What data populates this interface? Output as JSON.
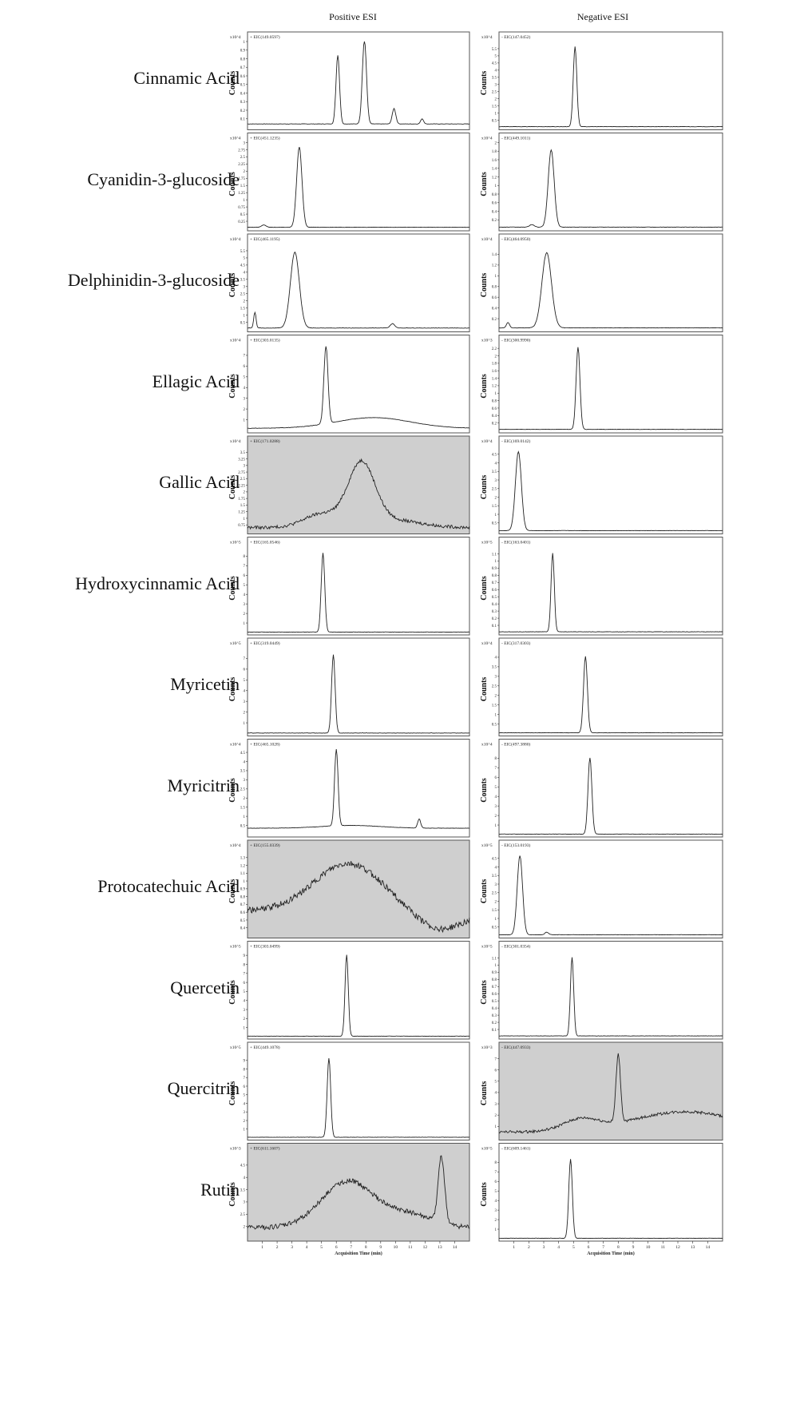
{
  "column_headers": {
    "positive": "Positive ESI",
    "negative": "Negative ESI"
  },
  "axis": {
    "ylabel": "Counts",
    "xlabel": "Acquisition Time (min)",
    "x_ticks": [
      "1",
      "2",
      "3",
      "4",
      "5",
      "6",
      "7",
      "8",
      "9",
      "10",
      "11",
      "12",
      "13",
      "14"
    ]
  },
  "compounds": [
    "Cinnamic Acid",
    "Cyanidin-3-glucoside",
    "Delphinidin-3-glucoside",
    "Ellagic Acid",
    "Gallic Acid",
    "Hydroxycinnamic Acid",
    "Myricetin",
    "Myricitrin",
    "Protocatechuic Acid",
    "Quercetin",
    "Quercitrin",
    "Rutin"
  ],
  "colors": {
    "trace": "#222222",
    "shaded_bg": "#cfcfcf",
    "frame": "#555555"
  },
  "chart_data": [
    {
      "type": "line",
      "panel": "Cinnamic Acid - Positive ESI",
      "label": "+ EIC(149.0597)",
      "scale": "x10^4",
      "shaded": false,
      "xlim": [
        0,
        15
      ],
      "ylim": [
        0,
        1
      ],
      "ticks": [
        "0.1",
        "0.2",
        "0.3",
        "0.4",
        "0.5",
        "0.6",
        "0.7",
        "0.8",
        "0.9",
        "1"
      ],
      "baseline": 0.04,
      "peaks": [
        [
          6.1,
          0.8,
          0.12
        ],
        [
          7.9,
          0.98,
          0.14
        ],
        [
          9.9,
          0.18,
          0.12
        ],
        [
          11.8,
          0.06,
          0.1
        ]
      ]
    },
    {
      "type": "line",
      "panel": "Cinnamic Acid - Negative ESI",
      "label": "- EIC(147.0452)",
      "scale": "x10^4",
      "shaded": false,
      "xlim": [
        0,
        15
      ],
      "ylim": [
        0,
        6
      ],
      "ticks": [
        "0.5",
        "1",
        "1.5",
        "2",
        "2.5",
        "3",
        "3.5",
        "4",
        "4.5",
        "5",
        "5.5"
      ],
      "baseline": 0.05,
      "peaks": [
        [
          5.1,
          5.6,
          0.12
        ]
      ]
    },
    {
      "type": "line",
      "panel": "Cyanidin-3-glucoside - Positive ESI",
      "label": "+ EIC(451.1235)",
      "scale": "x10^4",
      "shaded": false,
      "xlim": [
        0,
        15
      ],
      "ylim": [
        0,
        3
      ],
      "ticks": [
        "0.25",
        "0.5",
        "0.75",
        "1",
        "1.25",
        "1.5",
        "1.75",
        "2",
        "2.25",
        "2.5",
        "2.75",
        "3"
      ],
      "baseline": 0.04,
      "peaks": [
        [
          3.5,
          2.8,
          0.18
        ],
        [
          1.1,
          0.08,
          0.15
        ]
      ]
    },
    {
      "type": "line",
      "panel": "Cyanidin-3-glucoside - Negative ESI",
      "label": "- EIC(449.1011)",
      "scale": "x10^4",
      "shaded": false,
      "xlim": [
        0,
        15
      ],
      "ylim": [
        0,
        2
      ],
      "ticks": [
        "0.2",
        "0.4",
        "0.6",
        "0.8",
        "1",
        "1.2",
        "1.4",
        "1.6",
        "1.8",
        "2"
      ],
      "baseline": 0.03,
      "peaks": [
        [
          3.5,
          1.8,
          0.2
        ],
        [
          2.2,
          0.06,
          0.15
        ]
      ]
    },
    {
      "type": "line",
      "panel": "Delphinidin-3-glucoside - Positive ESI",
      "label": "+ EIC(465.1195)",
      "scale": "x10^4",
      "shaded": false,
      "xlim": [
        0,
        15
      ],
      "ylim": [
        0,
        6
      ],
      "ticks": [
        "0.5",
        "1",
        "1.5",
        "2",
        "2.5",
        "3",
        "3.5",
        "4",
        "4.5",
        "5",
        "5.5"
      ],
      "baseline": 0.1,
      "peaks": [
        [
          3.2,
          5.3,
          0.3
        ],
        [
          0.5,
          1.1,
          0.08
        ],
        [
          9.8,
          0.3,
          0.15
        ]
      ]
    },
    {
      "type": "line",
      "panel": "Delphinidin-3-glucoside - Negative ESI",
      "label": "- EIC(464.0950)",
      "scale": "x10^4",
      "shaded": false,
      "xlim": [
        0,
        15
      ],
      "ylim": [
        0,
        1.6
      ],
      "ticks": [
        "0.2",
        "0.4",
        "0.6",
        "0.8",
        "1",
        "1.2",
        "1.4"
      ],
      "baseline": 0.03,
      "peaks": [
        [
          3.2,
          1.4,
          0.32
        ],
        [
          0.6,
          0.1,
          0.1
        ]
      ]
    },
    {
      "type": "line",
      "panel": "Ellagic Acid - Positive ESI",
      "label": "+ EIC(303.0135)",
      "scale": "x10^4",
      "shaded": false,
      "xlim": [
        0,
        15
      ],
      "ylim": [
        0,
        8
      ],
      "ticks": [
        "1",
        "2",
        "3",
        "4",
        "5",
        "6",
        "7"
      ],
      "baseline": 0.2,
      "peaks": [
        [
          5.3,
          7.2,
          0.14
        ],
        [
          8.5,
          1.0,
          2.5
        ]
      ]
    },
    {
      "type": "line",
      "panel": "Ellagic Acid - Negative ESI",
      "label": "- EIC(300.9990)",
      "scale": "x10^3",
      "shaded": false,
      "xlim": [
        0,
        15
      ],
      "ylim": [
        0,
        2.3
      ],
      "ticks": [
        "0.2",
        "0.4",
        "0.6",
        "0.8",
        "1",
        "1.2",
        "1.4",
        "1.6",
        "1.8",
        "2",
        "2.2"
      ],
      "baseline": 0.03,
      "peaks": [
        [
          5.3,
          2.2,
          0.13
        ]
      ]
    },
    {
      "type": "line",
      "panel": "Gallic Acid - Positive ESI",
      "label": "+ EIC(171.0288)",
      "scale": "x10^4",
      "shaded": true,
      "xlim": [
        0,
        15
      ],
      "ylim": [
        0.5,
        3.75
      ],
      "ticks": [
        "0.75",
        "1",
        "1.25",
        "1.5",
        "1.75",
        "2",
        "2.25",
        "2.5",
        "2.75",
        "3",
        "3.25",
        "3.5"
      ],
      "baseline": 0.65,
      "noise": 0.06,
      "peaks": [
        [
          5,
          0.5,
          1.2
        ],
        [
          7.7,
          2.3,
          0.9
        ],
        [
          9.5,
          0.3,
          2
        ]
      ]
    },
    {
      "type": "line",
      "panel": "Gallic Acid - Negative ESI",
      "label": "- EIC(169.0142)",
      "scale": "x10^4",
      "shaded": false,
      "xlim": [
        0,
        15
      ],
      "ylim": [
        0,
        5
      ],
      "ticks": [
        "0.5",
        "1",
        "1.5",
        "2",
        "2.5",
        "3",
        "3.5",
        "4",
        "4.5"
      ],
      "baseline": 0.05,
      "peaks": [
        [
          1.3,
          4.6,
          0.2
        ]
      ]
    },
    {
      "type": "line",
      "panel": "Hydroxycinnamic Acid - Positive ESI",
      "label": "+ EIC(165.0546)",
      "scale": "x10^5",
      "shaded": false,
      "xlim": [
        0,
        15
      ],
      "ylim": [
        0,
        9
      ],
      "ticks": [
        "1",
        "2",
        "3",
        "4",
        "5",
        "6",
        "7",
        "8"
      ],
      "baseline": 0.05,
      "peaks": [
        [
          5.1,
          8.3,
          0.12
        ]
      ]
    },
    {
      "type": "line",
      "panel": "Hydroxycinnamic Acid - Negative ESI",
      "label": "- EIC(163.0401)",
      "scale": "x10^5",
      "shaded": false,
      "xlim": [
        0,
        15
      ],
      "ylim": [
        0,
        1.2
      ],
      "ticks": [
        "0.1",
        "0.2",
        "0.3",
        "0.4",
        "0.5",
        "0.6",
        "0.7",
        "0.8",
        "0.9",
        "1",
        "1.1"
      ],
      "baseline": 0.01,
      "peaks": [
        [
          3.6,
          1.1,
          0.11
        ]
      ]
    },
    {
      "type": "line",
      "panel": "Myricetin - Positive ESI",
      "label": "+ EIC(319.0449)",
      "scale": "x10^5",
      "shaded": false,
      "xlim": [
        0,
        15
      ],
      "ylim": [
        0,
        8
      ],
      "ticks": [
        "1",
        "2",
        "3",
        "4",
        "5",
        "6",
        "7"
      ],
      "baseline": 0.05,
      "peaks": [
        [
          5.8,
          7.3,
          0.12
        ]
      ]
    },
    {
      "type": "line",
      "panel": "Myricetin - Negative ESI",
      "label": "- EIC(317.0303)",
      "scale": "x10^4",
      "shaded": false,
      "xlim": [
        0,
        15
      ],
      "ylim": [
        0,
        4.5
      ],
      "ticks": [
        "0.5",
        "1",
        "1.5",
        "2",
        "2.5",
        "3",
        "3.5",
        "4"
      ],
      "baseline": 0.04,
      "peaks": [
        [
          5.8,
          4.0,
          0.13
        ]
      ]
    },
    {
      "type": "line",
      "panel": "Myricitrin - Positive ESI",
      "label": "+ EIC(465.1028)",
      "scale": "x10^4",
      "shaded": false,
      "xlim": [
        0,
        15
      ],
      "ylim": [
        0,
        4.7
      ],
      "ticks": [
        "0.5",
        "1",
        "1.5",
        "2",
        "2.5",
        "3",
        "3.5",
        "4",
        "4.5"
      ],
      "baseline": 0.35,
      "peaks": [
        [
          6.0,
          4.2,
          0.12
        ],
        [
          11.6,
          0.5,
          0.1
        ],
        [
          7,
          0.15,
          2
        ]
      ]
    },
    {
      "type": "line",
      "panel": "Myricitrin - Negative ESI",
      "label": "- EIC(497.3880)",
      "scale": "x10^4",
      "shaded": false,
      "xlim": [
        0,
        15
      ],
      "ylim": [
        0,
        9
      ],
      "ticks": [
        "1",
        "2",
        "3",
        "4",
        "5",
        "6",
        "7",
        "8"
      ],
      "baseline": 0.05,
      "peaks": [
        [
          6.1,
          8.0,
          0.13
        ]
      ]
    },
    {
      "type": "line",
      "panel": "Protocatechuic Acid - Positive ESI",
      "label": "+ EIC(155.0339)",
      "scale": "x10^4",
      "shaded": true,
      "xlim": [
        0,
        15
      ],
      "ylim": [
        0.3,
        1.4
      ],
      "ticks": [
        "0.4",
        "0.5",
        "0.6",
        "0.7",
        "0.8",
        "0.9",
        "1",
        "1.1",
        "1.2",
        "1.3"
      ],
      "baseline": 0.62,
      "noise": 0.04,
      "peaks": [
        [
          6.8,
          0.6,
          2.3
        ],
        [
          13,
          -0.25,
          1.6
        ]
      ]
    },
    {
      "type": "line",
      "panel": "Protocatechuic Acid - Negative ESI",
      "label": "- EIC(153.0193)",
      "scale": "x10^5",
      "shaded": false,
      "xlim": [
        0,
        15
      ],
      "ylim": [
        0,
        5
      ],
      "ticks": [
        "0.5",
        "1",
        "1.5",
        "2",
        "2.5",
        "3",
        "3.5",
        "4",
        "4.5"
      ],
      "baseline": 0.05,
      "peaks": [
        [
          1.4,
          4.6,
          0.18
        ],
        [
          3.2,
          0.15,
          0.12
        ]
      ]
    },
    {
      "type": "line",
      "panel": "Quercetin - Positive ESI",
      "label": "+ EIC(303.0499)",
      "scale": "x10^5",
      "shaded": false,
      "xlim": [
        0,
        15
      ],
      "ylim": [
        0,
        9.5
      ],
      "ticks": [
        "1",
        "2",
        "3",
        "4",
        "5",
        "6",
        "7",
        "8",
        "9"
      ],
      "baseline": 0.05,
      "peaks": [
        [
          6.7,
          9.0,
          0.11
        ]
      ]
    },
    {
      "type": "line",
      "panel": "Quercetin - Negative ESI",
      "label": "- EIC(301.0354)",
      "scale": "x10^5",
      "shaded": false,
      "xlim": [
        0,
        15
      ],
      "ylim": [
        0,
        1.2
      ],
      "ticks": [
        "0.1",
        "0.2",
        "0.3",
        "0.4",
        "0.5",
        "0.6",
        "0.7",
        "0.8",
        "0.9",
        "1",
        "1.1"
      ],
      "baseline": 0.01,
      "peaks": [
        [
          4.9,
          1.1,
          0.11
        ]
      ]
    },
    {
      "type": "line",
      "panel": "Quercitrin - Positive ESI",
      "label": "+ EIC(449.1078)",
      "scale": "x10^5",
      "shaded": false,
      "xlim": [
        0,
        15
      ],
      "ylim": [
        0,
        10
      ],
      "ticks": [
        "1",
        "2",
        "3",
        "4",
        "5",
        "6",
        "7",
        "8",
        "9"
      ],
      "baseline": 0.05,
      "peaks": [
        [
          5.5,
          9.2,
          0.12
        ]
      ]
    },
    {
      "type": "line",
      "panel": "Quercitrin - Negative ESI",
      "label": "- EIC(447.0933)",
      "scale": "x10^3",
      "shaded": true,
      "xlim": [
        0,
        15
      ],
      "ylim": [
        0,
        7.6
      ],
      "ticks": [
        "1",
        "2",
        "3",
        "4",
        "5",
        "6",
        "7"
      ],
      "baseline": 0.5,
      "noise": 0.12,
      "peaks": [
        [
          8.0,
          6.0,
          0.15
        ],
        [
          5.5,
          1.0,
          1.2
        ],
        [
          12.5,
          1.8,
          3.5
        ]
      ]
    },
    {
      "type": "line",
      "panel": "Rutin - Positive ESI",
      "label": "+ EIC(611.1607)",
      "scale": "x10^3",
      "shaded": true,
      "xlim": [
        0,
        15
      ],
      "ylim": [
        1.5,
        5
      ],
      "ticks": [
        "2",
        "2.5",
        "3",
        "3.5",
        "4",
        "4.5"
      ],
      "baseline": 1.95,
      "noise": 0.1,
      "peaks": [
        [
          6.8,
          1.9,
          1.8
        ],
        [
          13.1,
          2.7,
          0.22
        ],
        [
          11,
          0.5,
          1.5
        ]
      ]
    },
    {
      "type": "line",
      "panel": "Rutin - Negative ESI",
      "label": "- EIC(609.1461)",
      "scale": "x10^5",
      "shaded": false,
      "xlim": [
        0,
        15
      ],
      "ylim": [
        0,
        9
      ],
      "ticks": [
        "1",
        "2",
        "3",
        "4",
        "5",
        "6",
        "7",
        "8"
      ],
      "baseline": 0.05,
      "peaks": [
        [
          4.8,
          8.3,
          0.12
        ]
      ]
    }
  ]
}
